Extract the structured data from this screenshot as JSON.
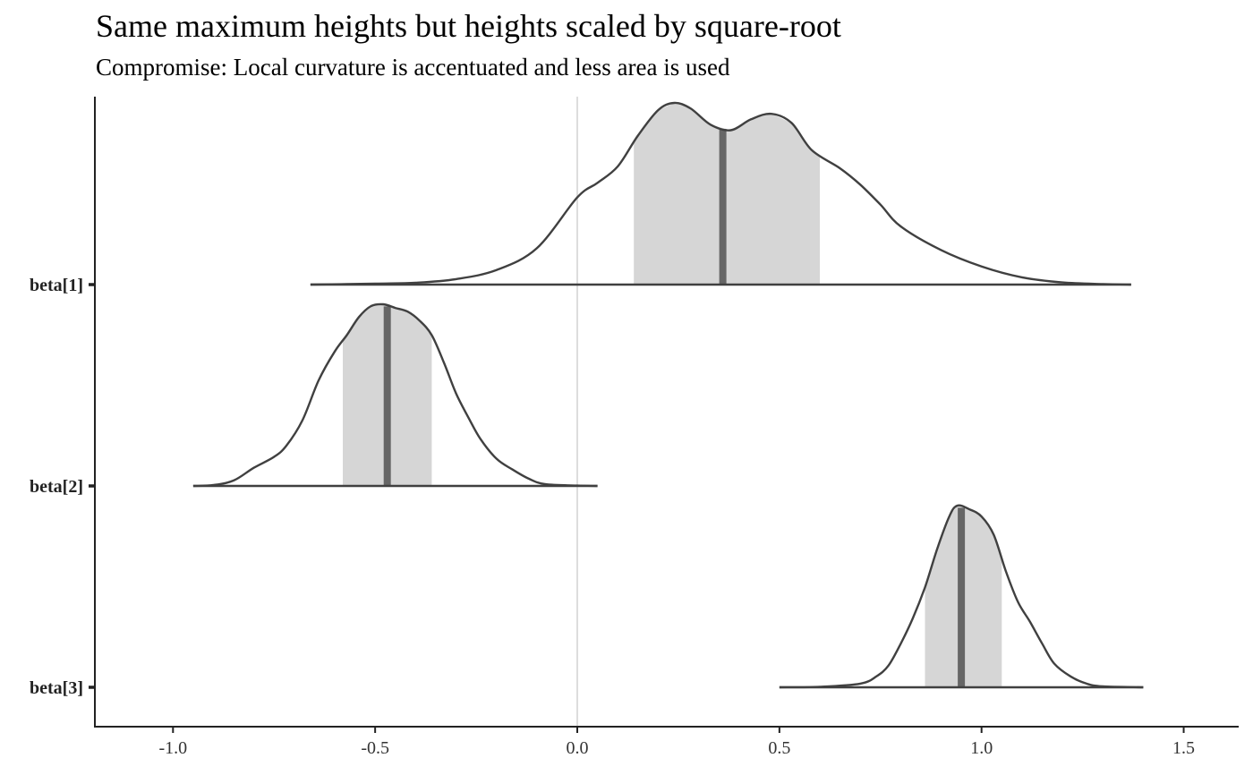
{
  "chart_data": {
    "type": "ridgeline",
    "title": "Same maximum heights but heights scaled by square-root",
    "subtitle": "Compromise: Local curvature is accentuated and less area is used",
    "xlabel": "",
    "ylabel": "",
    "xlim": [
      -1.2,
      1.63
    ],
    "xticks": [
      -1.0,
      -0.5,
      0.0,
      0.5,
      1.0,
      1.5
    ],
    "xtick_labels": [
      "-1.0",
      "-0.5",
      "0.0",
      "0.5",
      "1.0",
      "1.5"
    ],
    "vline_x": 0.0,
    "grid": false,
    "scaling": "square-root",
    "colors": {
      "outline": "#404040",
      "interval_fill": "#d6d6d6",
      "median_line": "#666666",
      "reference_line": "#dddddd",
      "axis": "#222222"
    },
    "series": [
      {
        "label": "beta[1]",
        "median": 0.36,
        "interval": [
          0.14,
          0.6
        ],
        "density": [
          [
            -0.66,
            0.0
          ],
          [
            -0.5,
            0.005
          ],
          [
            -0.4,
            0.01
          ],
          [
            -0.3,
            0.03
          ],
          [
            -0.2,
            0.08
          ],
          [
            -0.1,
            0.2
          ],
          [
            0.0,
            0.48
          ],
          [
            0.05,
            0.56
          ],
          [
            0.1,
            0.65
          ],
          [
            0.15,
            0.82
          ],
          [
            0.2,
            0.96
          ],
          [
            0.24,
            1.0
          ],
          [
            0.28,
            0.97
          ],
          [
            0.33,
            0.88
          ],
          [
            0.38,
            0.85
          ],
          [
            0.43,
            0.91
          ],
          [
            0.48,
            0.94
          ],
          [
            0.53,
            0.89
          ],
          [
            0.58,
            0.74
          ],
          [
            0.65,
            0.64
          ],
          [
            0.7,
            0.55
          ],
          [
            0.75,
            0.44
          ],
          [
            0.8,
            0.32
          ],
          [
            0.9,
            0.19
          ],
          [
            1.0,
            0.1
          ],
          [
            1.1,
            0.04
          ],
          [
            1.2,
            0.012
          ],
          [
            1.3,
            0.003
          ],
          [
            1.37,
            0.0
          ]
        ]
      },
      {
        "label": "beta[2]",
        "median": -0.47,
        "interval": [
          -0.58,
          -0.36
        ],
        "density": [
          [
            -0.95,
            0.0
          ],
          [
            -0.9,
            0.005
          ],
          [
            -0.85,
            0.03
          ],
          [
            -0.8,
            0.1
          ],
          [
            -0.75,
            0.16
          ],
          [
            -0.72,
            0.22
          ],
          [
            -0.68,
            0.36
          ],
          [
            -0.64,
            0.58
          ],
          [
            -0.6,
            0.74
          ],
          [
            -0.57,
            0.83
          ],
          [
            -0.54,
            0.93
          ],
          [
            -0.51,
            0.99
          ],
          [
            -0.48,
            1.0
          ],
          [
            -0.45,
            0.98
          ],
          [
            -0.42,
            0.96
          ],
          [
            -0.39,
            0.91
          ],
          [
            -0.36,
            0.83
          ],
          [
            -0.33,
            0.68
          ],
          [
            -0.3,
            0.51
          ],
          [
            -0.27,
            0.38
          ],
          [
            -0.24,
            0.26
          ],
          [
            -0.2,
            0.15
          ],
          [
            -0.16,
            0.09
          ],
          [
            -0.12,
            0.04
          ],
          [
            -0.08,
            0.01
          ],
          [
            0.0,
            0.002
          ],
          [
            0.05,
            0.0
          ]
        ]
      },
      {
        "label": "beta[3]",
        "median": 0.95,
        "interval": [
          0.86,
          1.05
        ],
        "density": [
          [
            0.5,
            0.0
          ],
          [
            0.6,
            0.003
          ],
          [
            0.7,
            0.02
          ],
          [
            0.74,
            0.06
          ],
          [
            0.77,
            0.12
          ],
          [
            0.8,
            0.24
          ],
          [
            0.83,
            0.38
          ],
          [
            0.86,
            0.55
          ],
          [
            0.89,
            0.76
          ],
          [
            0.92,
            0.94
          ],
          [
            0.94,
            1.0
          ],
          [
            0.97,
            0.98
          ],
          [
            1.0,
            0.94
          ],
          [
            1.03,
            0.84
          ],
          [
            1.06,
            0.64
          ],
          [
            1.09,
            0.47
          ],
          [
            1.12,
            0.36
          ],
          [
            1.15,
            0.24
          ],
          [
            1.18,
            0.13
          ],
          [
            1.22,
            0.06
          ],
          [
            1.26,
            0.02
          ],
          [
            1.3,
            0.005
          ],
          [
            1.4,
            0.0
          ]
        ]
      }
    ]
  }
}
